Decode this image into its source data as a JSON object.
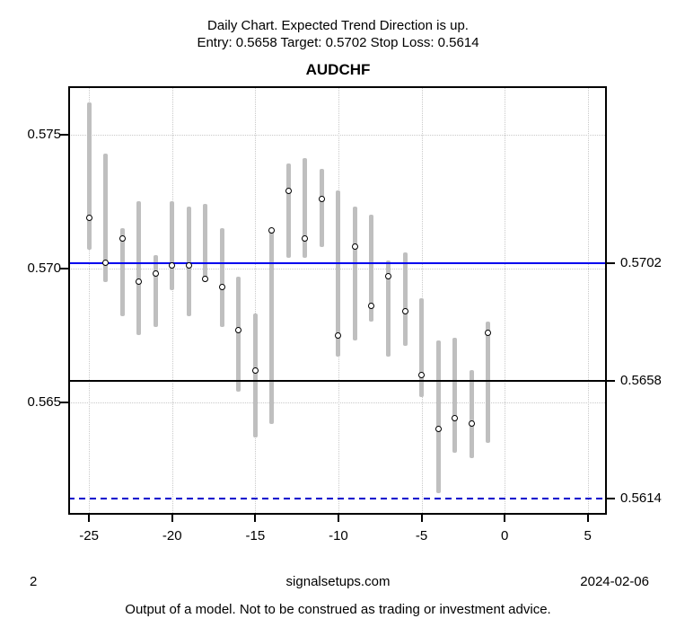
{
  "header": {
    "line1": "Daily Chart. Expected Trend Direction is up.",
    "line2": "Entry: 0.5658 Target: 0.5702 Stop Loss: 0.5614"
  },
  "chart_data": {
    "type": "bar",
    "title": "AUDCHF",
    "xlabel": "",
    "ylabel": "",
    "grid": true,
    "xlim": [
      -26.25,
      6.15
    ],
    "ylim": [
      0.5608,
      0.5768
    ],
    "x_ticks": [
      {
        "value": -25,
        "label": "-25"
      },
      {
        "value": -20,
        "label": "-20"
      },
      {
        "value": -15,
        "label": "-15"
      },
      {
        "value": -10,
        "label": "-10"
      },
      {
        "value": -5,
        "label": "-5"
      },
      {
        "value": 0,
        "label": "0"
      },
      {
        "value": 5,
        "label": "5"
      }
    ],
    "y_ticks": [
      {
        "value": 0.575,
        "label": "0.575"
      },
      {
        "value": 0.57,
        "label": "0.570"
      },
      {
        "value": 0.565,
        "label": "0.565"
      }
    ],
    "levels": [
      {
        "name": "target",
        "value": 0.5702,
        "label": "0.5702",
        "color": "#0000ee",
        "style": "solid"
      },
      {
        "name": "entry",
        "value": 0.5658,
        "label": "0.5658",
        "color": "#000000",
        "style": "solid"
      },
      {
        "name": "stop-loss",
        "value": 0.5614,
        "label": "0.5614",
        "color": "#0000cd",
        "style": "dashed"
      }
    ],
    "bars": [
      {
        "x": -25,
        "high": 0.5762,
        "low": 0.5707,
        "close": 0.5719
      },
      {
        "x": -24,
        "high": 0.5743,
        "low": 0.5695,
        "close": 0.5702
      },
      {
        "x": -23,
        "high": 0.5715,
        "low": 0.5682,
        "close": 0.5711
      },
      {
        "x": -22,
        "high": 0.5725,
        "low": 0.5675,
        "close": 0.5695
      },
      {
        "x": -21,
        "high": 0.5705,
        "low": 0.5678,
        "close": 0.5698
      },
      {
        "x": -20,
        "high": 0.5725,
        "low": 0.5692,
        "close": 0.5701
      },
      {
        "x": -19,
        "high": 0.5723,
        "low": 0.5682,
        "close": 0.5701
      },
      {
        "x": -18,
        "high": 0.5724,
        "low": 0.5695,
        "close": 0.5696
      },
      {
        "x": -17,
        "high": 0.5715,
        "low": 0.5678,
        "close": 0.5693
      },
      {
        "x": -16,
        "high": 0.5697,
        "low": 0.5654,
        "close": 0.5677
      },
      {
        "x": -15,
        "high": 0.5683,
        "low": 0.5637,
        "close": 0.5662
      },
      {
        "x": -14,
        "high": 0.5714,
        "low": 0.5642,
        "close": 0.5714
      },
      {
        "x": -13,
        "high": 0.5739,
        "low": 0.5704,
        "close": 0.5729
      },
      {
        "x": -12,
        "high": 0.5741,
        "low": 0.5704,
        "close": 0.5711
      },
      {
        "x": -11,
        "high": 0.5737,
        "low": 0.5708,
        "close": 0.5726
      },
      {
        "x": -10,
        "high": 0.5729,
        "low": 0.5667,
        "close": 0.5675
      },
      {
        "x": -9,
        "high": 0.5723,
        "low": 0.5673,
        "close": 0.5708
      },
      {
        "x": -8,
        "high": 0.572,
        "low": 0.568,
        "close": 0.5686
      },
      {
        "x": -7,
        "high": 0.5703,
        "low": 0.5667,
        "close": 0.5697
      },
      {
        "x": -6,
        "high": 0.5706,
        "low": 0.5671,
        "close": 0.5684
      },
      {
        "x": -5,
        "high": 0.5689,
        "low": 0.5652,
        "close": 0.566
      },
      {
        "x": -4,
        "high": 0.5673,
        "low": 0.5616,
        "close": 0.564
      },
      {
        "x": -3,
        "high": 0.5674,
        "low": 0.5631,
        "close": 0.5644
      },
      {
        "x": -2,
        "high": 0.5662,
        "low": 0.5629,
        "close": 0.5642
      },
      {
        "x": -1,
        "high": 0.568,
        "low": 0.5635,
        "close": 0.5676
      }
    ],
    "bar_color": "#bfbfbf",
    "marker": {
      "fill": "#ffffff",
      "stroke": "#000000"
    },
    "grid_color": "#c9c9c9",
    "legend": "none"
  },
  "footer": {
    "page": "2",
    "site": "signalsetups.com",
    "date": "2024-02-06",
    "disclaimer": "Output of a model. Not to be construed as trading or investment advice."
  }
}
